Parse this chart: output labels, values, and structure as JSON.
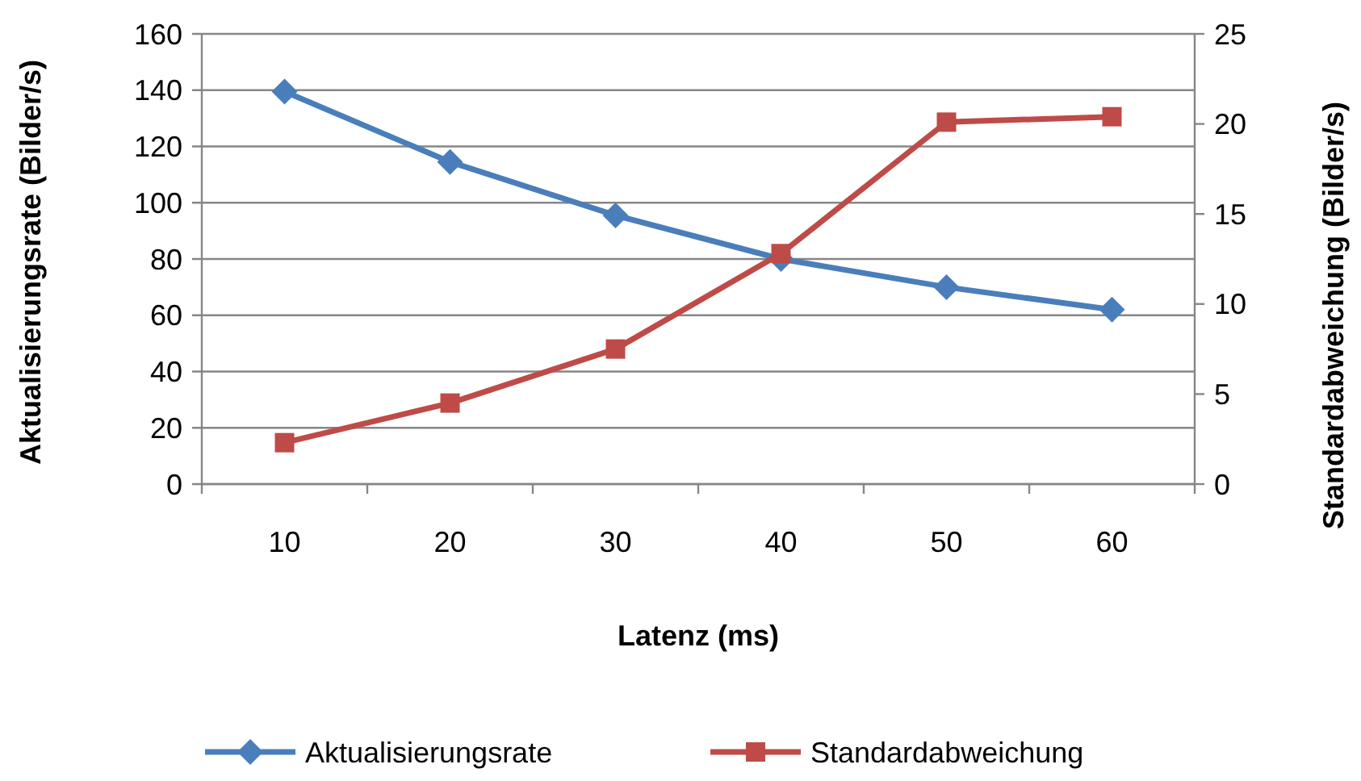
{
  "chart_data": {
    "type": "line",
    "xlabel": "Latenz (ms)",
    "ylabel": "Aktualisierungsrate (Bilder/s)",
    "y2label": "Standardabweichung (Bilder/s)",
    "categories": [
      "10",
      "20",
      "30",
      "40",
      "50",
      "60"
    ],
    "series": [
      {
        "name": "Aktualisierungsrate",
        "color": "#4a7ebb",
        "values": [
          139.5,
          114.5,
          95.5,
          80,
          70,
          62
        ],
        "marker": "diamond"
      },
      {
        "name": "Standardabweichung",
        "color": "#be4b48",
        "values": [
          2.3,
          4.5,
          7.5,
          12.8,
          20.1,
          20.4
        ],
        "marker": "square",
        "axis": "y2"
      }
    ],
    "ylim": [
      0,
      160
    ],
    "yticks": [
      0,
      20,
      40,
      60,
      80,
      100,
      120,
      140,
      160
    ],
    "y2lim": [
      0,
      25
    ],
    "y2ticks": [
      0,
      5,
      10,
      15,
      20,
      25
    ],
    "grid": "y",
    "legend": "bottom"
  }
}
